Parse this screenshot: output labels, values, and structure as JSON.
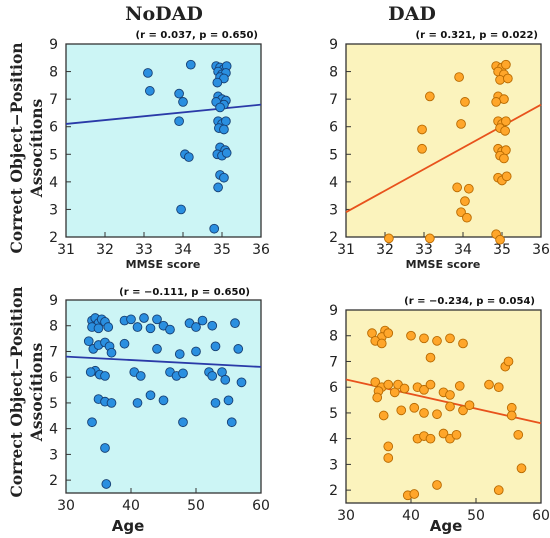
{
  "colors": {
    "nodad_bg": "#ccf5f5",
    "dad_bg": "#fbf3bd",
    "nodad_point": "#2a8fe0",
    "nodad_point_edge": "#163f73",
    "nodad_line": "#2a3aa8",
    "dad_point": "#ffa62a",
    "dad_point_edge": "#b86a00",
    "dad_line": "#e8521c"
  },
  "chart_data": [
    {
      "id": "nodad-mmse",
      "type": "scatter",
      "title": "NoDAD",
      "stat": "(r = 0.037, p = 0.650)",
      "xlabel": "MMSE score",
      "ylabel": "Correct Object−Position Assocítions",
      "xlim": [
        31,
        36
      ],
      "ylim": [
        2,
        9
      ],
      "xticks": [
        31,
        32,
        33,
        34,
        35,
        36
      ],
      "yticks": [
        2,
        3,
        4,
        5,
        6,
        7,
        8,
        9
      ],
      "trend": {
        "x": [
          31,
          36
        ],
        "y": [
          6.1,
          6.8
        ]
      },
      "points": [
        [
          33.1,
          7.95
        ],
        [
          33.15,
          7.3
        ],
        [
          34.2,
          8.25
        ],
        [
          33.9,
          7.2
        ],
        [
          34.0,
          6.9
        ],
        [
          33.9,
          6.2
        ],
        [
          34.05,
          5.0
        ],
        [
          34.15,
          4.9
        ],
        [
          33.95,
          3.0
        ],
        [
          34.8,
          2.3
        ],
        [
          34.85,
          8.2
        ],
        [
          34.95,
          8.15
        ],
        [
          35.05,
          8.1
        ],
        [
          35.12,
          8.2
        ],
        [
          34.9,
          8.0
        ],
        [
          35.0,
          7.9
        ],
        [
          35.1,
          7.95
        ],
        [
          34.95,
          7.8
        ],
        [
          35.05,
          7.75
        ],
        [
          34.88,
          7.6
        ],
        [
          34.9,
          7.1
        ],
        [
          35.0,
          7.0
        ],
        [
          35.1,
          6.95
        ],
        [
          34.85,
          6.9
        ],
        [
          35.05,
          6.8
        ],
        [
          34.95,
          6.7
        ],
        [
          34.9,
          6.2
        ],
        [
          35.0,
          6.1
        ],
        [
          35.1,
          6.2
        ],
        [
          34.92,
          5.95
        ],
        [
          35.05,
          5.9
        ],
        [
          34.95,
          5.25
        ],
        [
          35.08,
          5.15
        ],
        [
          34.88,
          5.0
        ],
        [
          35.0,
          4.95
        ],
        [
          35.12,
          5.05
        ],
        [
          34.95,
          4.25
        ],
        [
          35.05,
          4.15
        ],
        [
          34.9,
          3.8
        ]
      ]
    },
    {
      "id": "dad-mmse",
      "type": "scatter",
      "title": "DAD",
      "stat": "(r = 0.321, p = 0.022)",
      "xlabel": "MMSE score",
      "ylabel": "",
      "xlim": [
        31,
        36
      ],
      "ylim": [
        2,
        9
      ],
      "xticks": [
        31,
        32,
        33,
        34,
        35,
        36
      ],
      "yticks": [
        2,
        3,
        4,
        5,
        6,
        7,
        8,
        9
      ],
      "trend": {
        "x": [
          31,
          36
        ],
        "y": [
          2.9,
          6.8
        ]
      },
      "points": [
        [
          32.1,
          1.95
        ],
        [
          33.15,
          1.95
        ],
        [
          32.95,
          5.9
        ],
        [
          32.95,
          5.2
        ],
        [
          33.15,
          7.1
        ],
        [
          33.9,
          7.8
        ],
        [
          34.05,
          6.9
        ],
        [
          33.95,
          6.1
        ],
        [
          33.85,
          3.8
        ],
        [
          34.05,
          3.3
        ],
        [
          33.95,
          2.9
        ],
        [
          34.1,
          2.7
        ],
        [
          34.15,
          3.75
        ],
        [
          34.85,
          8.2
        ],
        [
          35.0,
          8.15
        ],
        [
          35.1,
          8.25
        ],
        [
          34.9,
          8.0
        ],
        [
          35.05,
          7.9
        ],
        [
          34.95,
          7.7
        ],
        [
          35.15,
          7.75
        ],
        [
          34.9,
          7.1
        ],
        [
          35.05,
          7.0
        ],
        [
          34.85,
          6.9
        ],
        [
          34.9,
          6.2
        ],
        [
          35.0,
          6.1
        ],
        [
          35.1,
          6.2
        ],
        [
          34.95,
          5.95
        ],
        [
          35.08,
          5.85
        ],
        [
          34.9,
          5.2
        ],
        [
          35.0,
          5.1
        ],
        [
          35.1,
          5.15
        ],
        [
          34.95,
          4.95
        ],
        [
          35.05,
          4.85
        ],
        [
          34.9,
          4.15
        ],
        [
          35.0,
          4.05
        ],
        [
          35.12,
          4.2
        ],
        [
          34.85,
          2.1
        ],
        [
          34.95,
          1.9
        ]
      ]
    },
    {
      "id": "nodad-age",
      "type": "scatter",
      "title": "",
      "stat": "(r = −0.111, p = 0.650)",
      "xlabel": "Age",
      "ylabel": "Correct Object−Position Assocítions",
      "xlim": [
        30,
        60
      ],
      "ylim": [
        1.5,
        9
      ],
      "xticks": [
        30,
        40,
        50,
        60
      ],
      "yticks": [
        2,
        3,
        4,
        5,
        6,
        7,
        8,
        9
      ],
      "trend": {
        "x": [
          30,
          60
        ],
        "y": [
          6.8,
          6.4
        ]
      },
      "points": [
        [
          34,
          8.2
        ],
        [
          34.5,
          8.3
        ],
        [
          35,
          8.1
        ],
        [
          35.5,
          8.25
        ],
        [
          36,
          8.15
        ],
        [
          34,
          7.95
        ],
        [
          35,
          7.9
        ],
        [
          36.5,
          7.95
        ],
        [
          33.5,
          7.4
        ],
        [
          34.2,
          7.1
        ],
        [
          35,
          7.25
        ],
        [
          36,
          7.35
        ],
        [
          36.7,
          7.2
        ],
        [
          37,
          6.95
        ],
        [
          34.5,
          6.25
        ],
        [
          35.2,
          6.1
        ],
        [
          36,
          6.05
        ],
        [
          33.8,
          6.2
        ],
        [
          35,
          5.15
        ],
        [
          36,
          5.05
        ],
        [
          37,
          5.0
        ],
        [
          34,
          4.25
        ],
        [
          36,
          3.25
        ],
        [
          36.2,
          1.85
        ],
        [
          39,
          8.2
        ],
        [
          40,
          8.25
        ],
        [
          41,
          7.95
        ],
        [
          42,
          8.3
        ],
        [
          43,
          7.9
        ],
        [
          44,
          8.25
        ],
        [
          45,
          8.0
        ],
        [
          46,
          7.85
        ],
        [
          39,
          7.3
        ],
        [
          40.5,
          6.2
        ],
        [
          41.5,
          6.05
        ],
        [
          44,
          7.1
        ],
        [
          46,
          6.2
        ],
        [
          47,
          6.05
        ],
        [
          47.5,
          6.9
        ],
        [
          48,
          6.15
        ],
        [
          41,
          5.0
        ],
        [
          43,
          5.3
        ],
        [
          45,
          5.1
        ],
        [
          48,
          4.25
        ],
        [
          49,
          8.1
        ],
        [
          50,
          7.95
        ],
        [
          51,
          8.2
        ],
        [
          52.5,
          8.0
        ],
        [
          53,
          7.2
        ],
        [
          50,
          7.0
        ],
        [
          52,
          6.2
        ],
        [
          52.5,
          6.05
        ],
        [
          54,
          6.2
        ],
        [
          54.5,
          5.9
        ],
        [
          53,
          5.0
        ],
        [
          55.5,
          4.25
        ],
        [
          56,
          8.1
        ],
        [
          56.5,
          7.1
        ],
        [
          55,
          5.1
        ],
        [
          57,
          5.8
        ]
      ]
    },
    {
      "id": "dad-age",
      "type": "scatter",
      "title": "",
      "stat": "(r = −0.234, p = 0.054)",
      "xlabel": "Age",
      "ylabel": "",
      "xlim": [
        30,
        60
      ],
      "ylim": [
        1.5,
        9
      ],
      "xticks": [
        30,
        40,
        50,
        60
      ],
      "yticks": [
        2,
        3,
        4,
        5,
        6,
        7,
        8,
        9
      ],
      "trend": {
        "x": [
          30,
          60
        ],
        "y": [
          6.3,
          4.6
        ]
      },
      "points": [
        [
          34,
          8.1
        ],
        [
          36,
          8.2
        ],
        [
          35.5,
          7.95
        ],
        [
          36.5,
          8.1
        ],
        [
          34.5,
          7.8
        ],
        [
          35.5,
          7.7
        ],
        [
          34.5,
          6.2
        ],
        [
          35.5,
          6.0
        ],
        [
          36.5,
          6.1
        ],
        [
          35,
          5.85
        ],
        [
          34.8,
          5.6
        ],
        [
          37.5,
          5.8
        ],
        [
          35.8,
          4.9
        ],
        [
          36.5,
          3.7
        ],
        [
          36.5,
          3.25
        ],
        [
          40,
          8.0
        ],
        [
          42,
          7.9
        ],
        [
          44,
          7.8
        ],
        [
          46,
          7.9
        ],
        [
          48,
          7.7
        ],
        [
          43,
          7.15
        ],
        [
          38,
          6.1
        ],
        [
          39,
          5.95
        ],
        [
          41,
          6.0
        ],
        [
          42,
          5.9
        ],
        [
          43,
          6.1
        ],
        [
          45,
          5.8
        ],
        [
          46,
          5.7
        ],
        [
          47.5,
          6.05
        ],
        [
          38.5,
          5.1
        ],
        [
          40.5,
          5.2
        ],
        [
          42,
          5.0
        ],
        [
          44,
          4.95
        ],
        [
          46,
          5.25
        ],
        [
          48,
          5.1
        ],
        [
          49,
          5.3
        ],
        [
          41,
          4.0
        ],
        [
          42,
          4.1
        ],
        [
          43,
          4.0
        ],
        [
          45,
          4.2
        ],
        [
          46,
          4.0
        ],
        [
          47,
          4.15
        ],
        [
          39.5,
          1.8
        ],
        [
          40.5,
          1.85
        ],
        [
          44,
          2.2
        ],
        [
          52,
          6.1
        ],
        [
          53.5,
          6.0
        ],
        [
          54.5,
          6.8
        ],
        [
          55,
          7.0
        ],
        [
          55.5,
          5.2
        ],
        [
          55.5,
          4.9
        ],
        [
          56.5,
          4.15
        ],
        [
          57,
          2.85
        ],
        [
          53.5,
          2.0
        ]
      ]
    }
  ]
}
